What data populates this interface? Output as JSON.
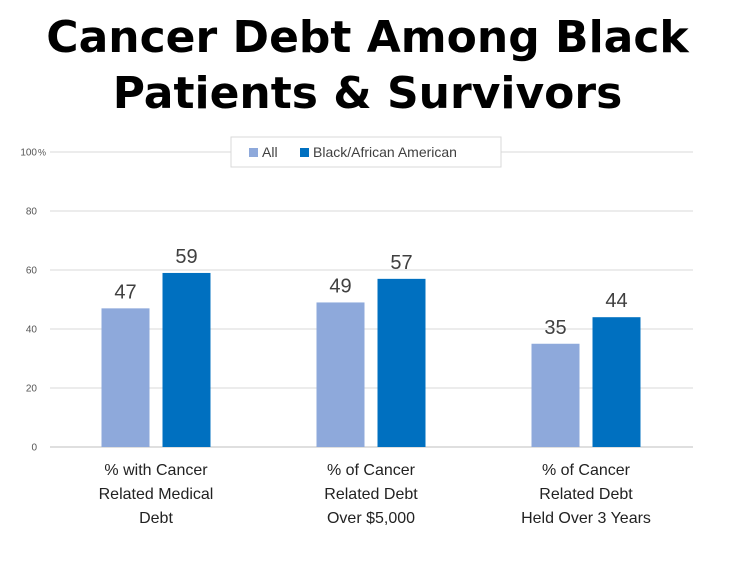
{
  "title_lines": [
    "Cancer Debt Among Black",
    "Patients & Survivors"
  ],
  "colors": {
    "all": "#8EA9DB",
    "black": "#0070C0",
    "grid": "#D9D9D9"
  },
  "chart_data": {
    "type": "bar",
    "title": "Cancer Debt Among Black Patients & Survivors",
    "categories": [
      [
        "% with Cancer",
        "Related Medical",
        "Debt"
      ],
      [
        "% of Cancer",
        "Related Debt",
        "Over $5,000"
      ],
      [
        "% of Cancer",
        "Related Debt",
        "Held Over 3 Years"
      ]
    ],
    "series": [
      {
        "name": "All",
        "values": [
          47,
          49,
          35
        ]
      },
      {
        "name": "Black/African American",
        "values": [
          59,
          57,
          44
        ]
      }
    ],
    "ylim": [
      0,
      100
    ],
    "yticks": [
      "0",
      "20",
      "40",
      "60",
      "80",
      "100"
    ],
    "y_unit": "%",
    "grid": true,
    "legend_position": "top-right"
  }
}
